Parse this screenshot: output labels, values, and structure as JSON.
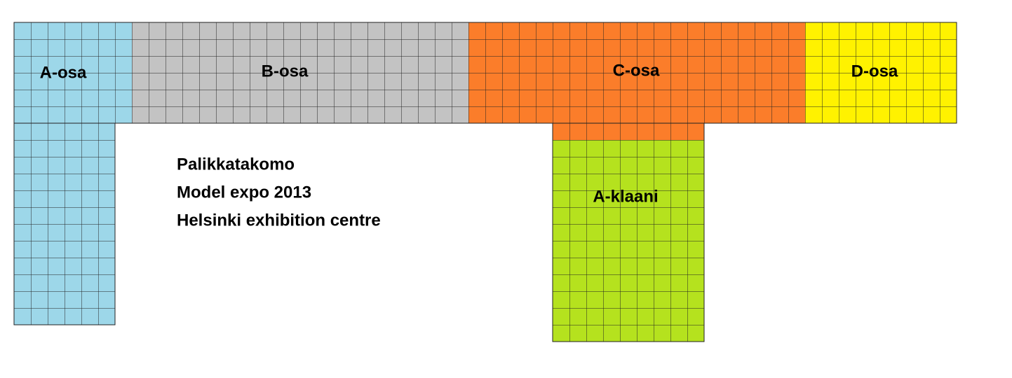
{
  "sections": [
    {
      "label": "A-osa"
    },
    {
      "label": "B-osa"
    },
    {
      "label": "C-osa"
    },
    {
      "label": "D-osa"
    },
    {
      "label": "A-klaani"
    }
  ],
  "notes": {
    "lines": [
      "Palikkatakomo",
      "Model expo 2013",
      "Helsinki exhibition centre"
    ]
  }
}
